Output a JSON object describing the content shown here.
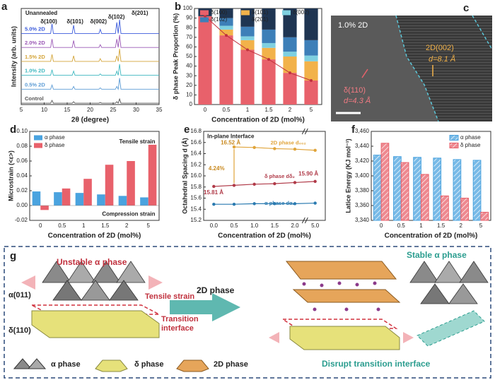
{
  "chart_data": [
    {
      "type": "line",
      "panel": "a",
      "xlabel": "2θ (degree)",
      "ylabel": "Intensity (arb. units)",
      "x": [
        5,
        11.4,
        11.7,
        12.0,
        12.3,
        16.1,
        16.4,
        16.7,
        21.9,
        22.2,
        22.5,
        25.5,
        25.8,
        26.1,
        26.4,
        26.7,
        27.0,
        35
      ],
      "xlim": [
        5,
        35
      ],
      "xticks": [
        5,
        10,
        15,
        20,
        25,
        30,
        35
      ],
      "ylim": [
        0,
        6.9
      ],
      "legend": "inline",
      "annotations": [
        "Unannealed",
        "δ(100)",
        "δ(101)",
        "δ(002)",
        "δ(102)",
        "δ(201)"
      ],
      "series": [
        {
          "name": "Control",
          "color": "#555555",
          "values": [
            0.1,
            0.1,
            0.3,
            0.1,
            0.1,
            0.1,
            0.2,
            0.1,
            0.1,
            0.15,
            0.1,
            0.1,
            0.2,
            0.1,
            0.4,
            0.1,
            0.1,
            0.1
          ]
        },
        {
          "name": "0.5% 2D",
          "color": "#5b9bd5",
          "values": [
            1.1,
            1.1,
            1.4,
            1.1,
            1.1,
            1.1,
            1.3,
            1.1,
            1.1,
            1.2,
            1.1,
            1.1,
            1.3,
            1.1,
            1.9,
            1.1,
            1.1,
            1.1
          ]
        },
        {
          "name": "1.0% 2D",
          "color": "#3fb8c0",
          "values": [
            2.1,
            2.1,
            2.5,
            2.1,
            2.1,
            2.1,
            2.4,
            2.1,
            2.1,
            2.2,
            2.1,
            2.1,
            2.4,
            2.1,
            2.9,
            2.1,
            2.1,
            2.1
          ]
        },
        {
          "name": "1.5% 2D",
          "color": "#d4a53a",
          "values": [
            3.1,
            3.1,
            3.6,
            3.1,
            3.1,
            3.1,
            3.5,
            3.1,
            3.1,
            3.3,
            3.1,
            3.1,
            3.5,
            3.1,
            4.0,
            3.1,
            3.1,
            3.1
          ]
        },
        {
          "name": "2.0% 2D",
          "color": "#9b59b6",
          "values": [
            4.1,
            4.1,
            4.7,
            4.1,
            4.1,
            4.1,
            4.6,
            4.1,
            4.1,
            4.3,
            4.1,
            4.1,
            4.7,
            4.1,
            5.0,
            4.1,
            4.1,
            4.1
          ]
        },
        {
          "name": "5.0% 2D",
          "color": "#3b5bdb",
          "values": [
            5.1,
            5.1,
            5.8,
            5.1,
            5.1,
            5.1,
            5.7,
            5.1,
            5.1,
            5.4,
            5.1,
            5.1,
            5.9,
            5.1,
            6.1,
            5.1,
            5.1,
            5.1
          ]
        }
      ]
    },
    {
      "type": "bar",
      "panel": "b",
      "stacked": true,
      "trend": true,
      "xlabel": "Concentration of 2D (mol%)",
      "ylabel": "δ phase Peak Proportion (%)",
      "categories": [
        "0",
        "0.5",
        "1",
        "1.5",
        "2",
        "5"
      ],
      "ylim": [
        0,
        100
      ],
      "yticks": [
        0,
        10,
        20,
        30,
        40,
        50,
        60,
        70,
        80,
        90,
        100
      ],
      "legend": "top",
      "series": [
        {
          "name": "δ(100)",
          "color": "#e8616b",
          "values": [
            92,
            72,
            57,
            47,
            33,
            25
          ]
        },
        {
          "name": "δ(101)",
          "color": "#f2b24a",
          "values": [
            0,
            6,
            10,
            12,
            17,
            20
          ]
        },
        {
          "name": "δ(002)",
          "color": "#7fd0e0",
          "values": [
            0,
            4,
            4,
            5,
            5,
            6
          ]
        },
        {
          "name": "δ(102)",
          "color": "#3d7fb8",
          "values": [
            0,
            8,
            10,
            14,
            15,
            16
          ]
        },
        {
          "name": "δ(201)",
          "color": "#1f3552",
          "values": [
            8,
            10,
            19,
            22,
            30,
            33
          ]
        }
      ]
    },
    {
      "type": "bar",
      "panel": "d",
      "xlabel": "Concentration of 2D (mol%)",
      "ylabel": "Microstrain (<ε>)",
      "categories": [
        "0",
        "0.5",
        "1",
        "1.5",
        "2",
        "5"
      ],
      "ylim": [
        -0.02,
        0.1
      ],
      "yticks": [
        -0.02,
        {
          "value": 0,
          "label": "0.00"
        },
        0.02,
        0.04,
        0.06,
        0.08,
        {
          "value": 0.1,
          "label": "0.10"
        }
      ],
      "legend": "upper left",
      "annotations": [
        "Tensile strain",
        "Compression strain"
      ],
      "series": [
        {
          "name": "α phase",
          "color": "#4aa3df",
          "values": [
            0.019,
            0.018,
            0.017,
            0.015,
            0.013,
            0.011
          ]
        },
        {
          "name": "δ phase",
          "color": "#e8616b",
          "values": [
            -0.006,
            0.023,
            0.036,
            0.055,
            0.06,
            0.082
          ]
        }
      ]
    },
    {
      "type": "line",
      "panel": "e",
      "xlabel": "Concentration of 2D (mol%)",
      "ylabel": "Octahedral Spacing d (Å)",
      "categories": [
        "0.0",
        "0.5",
        "1.0",
        "1.5",
        "2.0",
        "5.0"
      ],
      "axis_break": true,
      "ylim": [
        15.2,
        16.8
      ],
      "yticks": [
        15.2,
        15.4,
        15.6,
        15.8,
        {
          "value": 16,
          "label": "16.0"
        },
        16.2,
        16.4,
        16.6,
        16.8
      ],
      "legend": "inline",
      "annotations": [
        "In-plane Interface",
        "16.52 Å",
        "4.24%",
        "15.81 Å",
        "15.90 Å"
      ],
      "series": [
        {
          "name": "2D phase d₀₀₂",
          "color": "#e0a43a",
          "values": [
            null,
            16.52,
            16.51,
            16.49,
            16.48,
            16.46
          ]
        },
        {
          "name": "δ phase dδ₂",
          "color": "#b03a48",
          "values": [
            15.81,
            15.83,
            15.85,
            15.86,
            15.88,
            15.9
          ]
        },
        {
          "name": "α phase dα₂",
          "color": "#2a7ab0",
          "values": [
            15.49,
            15.49,
            15.5,
            15.5,
            15.5,
            15.51
          ]
        }
      ]
    },
    {
      "type": "bar",
      "panel": "f",
      "hatch": true,
      "xlabel": "Concentration of 2D (mol%)",
      "ylabel": "Latice Energy (KJ mol⁻¹)",
      "categories": [
        "0",
        "0.5",
        "1",
        "1.5",
        "2",
        "5"
      ],
      "ylim": [
        3340,
        3460
      ],
      "yticks": [
        {
          "value": 3340,
          "label": "3,340"
        },
        {
          "value": 3360,
          "label": "3,360"
        },
        {
          "value": 3380,
          "label": "3,380"
        },
        {
          "value": 3400,
          "label": "3,400"
        },
        {
          "value": 3420,
          "label": "3,420"
        },
        {
          "value": 3440,
          "label": "3,440"
        },
        {
          "value": 3460,
          "label": "3,460"
        }
      ],
      "legend": "upper right",
      "series": [
        {
          "name": "α phase",
          "color": "#4aa3df",
          "values": [
            3428,
            3426,
            3425,
            3424,
            3422,
            3421
          ]
        },
        {
          "name": "δ phase",
          "color": "#e8616b",
          "values": [
            3444,
            3418,
            3402,
            3373,
            3370,
            3351
          ]
        }
      ]
    }
  ],
  "image_c": {
    "panel": "c",
    "labels": [
      "1.0% 2D",
      "2D(002)",
      "d=8.1 Å",
      "δ(110)",
      "d=4.3 Å"
    ]
  },
  "diagram_g": {
    "panel": "g",
    "labels": [
      "Unstable α phase",
      "α(011)",
      "Tensile strain",
      "Transition",
      "interface",
      "δ(110)",
      "2D phase",
      "Stable α phase",
      "Disrupt transition interface"
    ],
    "legend": [
      "α phase",
      "δ phase",
      "2D phase"
    ]
  }
}
